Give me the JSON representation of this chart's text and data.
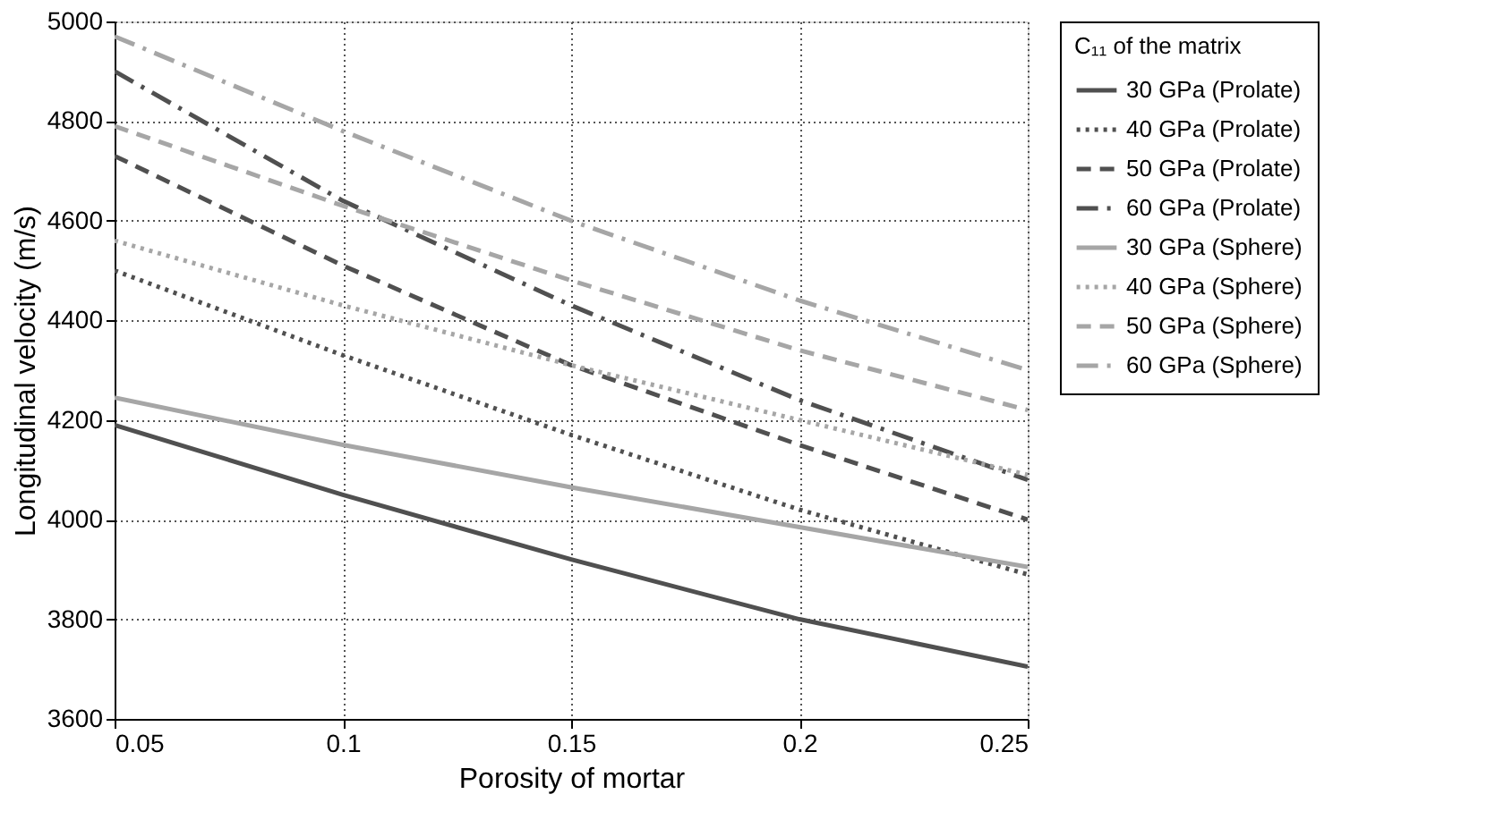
{
  "chart_data": {
    "type": "line",
    "xlabel": "Porosity of mortar",
    "ylabel": "Longitudinal velocity (m/s)",
    "legend_title": "C₁₁ of the matrix",
    "legend": "right",
    "grid": true,
    "x": [
      0.05,
      0.1,
      0.15,
      0.2,
      0.25
    ],
    "xlim": [
      0.05,
      0.25
    ],
    "xticks": [
      0.05,
      0.1,
      0.15,
      0.2,
      0.25
    ],
    "ylim": [
      3600,
      5000
    ],
    "yticks": [
      3600,
      3800,
      4000,
      4200,
      4400,
      4600,
      4800,
      5000
    ],
    "series": [
      {
        "name": "30 GPa (Prolate)",
        "color": "#505050",
        "line_style": "solid",
        "values": [
          4190,
          4050,
          3920,
          3800,
          3705
        ]
      },
      {
        "name": "40 GPa (Prolate)",
        "color": "#505050",
        "line_style": "dotted",
        "values": [
          4500,
          4330,
          4170,
          4020,
          3890
        ]
      },
      {
        "name": "50 GPa (Prolate)",
        "color": "#505050",
        "line_style": "dashed",
        "values": [
          4730,
          4510,
          4310,
          4150,
          4000
        ]
      },
      {
        "name": "60 GPa (Prolate)",
        "color": "#505050",
        "line_style": "dashdot",
        "values": [
          4900,
          4640,
          4430,
          4240,
          4080
        ]
      },
      {
        "name": "30 GPa (Sphere)",
        "color": "#a6a6a6",
        "line_style": "solid",
        "values": [
          4245,
          4150,
          4065,
          3985,
          3905
        ]
      },
      {
        "name": "40 GPa (Sphere)",
        "color": "#a6a6a6",
        "line_style": "dotted",
        "values": [
          4560,
          4430,
          4310,
          4200,
          4090
        ]
      },
      {
        "name": "50 GPa (Sphere)",
        "color": "#a6a6a6",
        "line_style": "dashed",
        "values": [
          4790,
          4630,
          4480,
          4340,
          4220
        ]
      },
      {
        "name": "60 GPa (Sphere)",
        "color": "#a6a6a6",
        "line_style": "dashdot",
        "values": [
          4970,
          4780,
          4600,
          4440,
          4300
        ]
      }
    ]
  }
}
